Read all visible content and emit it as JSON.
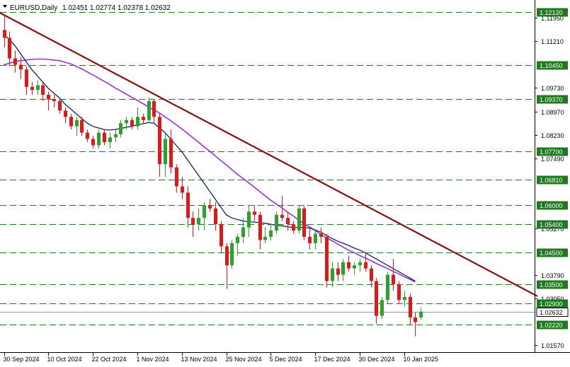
{
  "window": {
    "symbol_timeframe": "EURUSD,Daily",
    "ohlc": "1.02451 1.02774 1.02378 1.02632"
  },
  "colors": {
    "background": "#ffffff",
    "bull": "#2ea02c",
    "bear": "#e01818",
    "ma_fast": "#141e6e",
    "ma_slow": "#9b30d9",
    "trendline": "#8b0e0e",
    "level_line": "#1e7a1e",
    "level_label_bg": "#1e7a1e",
    "current_line": "#8a9a8a"
  },
  "chart_data": {
    "type": "candlestick",
    "title": "EURUSD,Daily",
    "ylim": [
      1.0135,
      1.125
    ],
    "x_labels": [
      "30 Sep 2024",
      "10 Oct 2024",
      "22 Oct 2024",
      "1 Nov 2024",
      "13 Nov 2024",
      "25 Nov 2024",
      "5 Dec 2024",
      "17 Dec 2024",
      "30 Dec 2024",
      "10 Jan 2025"
    ],
    "x_label_bar_index": [
      0,
      8,
      16,
      24,
      32,
      40,
      48,
      56,
      64,
      72
    ],
    "y_tick_labels": [
      "1.11950",
      "1.11210",
      "1.09730",
      "1.08970",
      "1.08230",
      "1.07490",
      "1.05270",
      "1.03790",
      "1.03050",
      "1.01570"
    ],
    "horizontal_levels": [
      "1.12120",
      "1.10450",
      "1.09370",
      "1.07700",
      "1.06810",
      "1.06000",
      "1.05400",
      "1.04500",
      "1.03500",
      "1.02900",
      "1.02220"
    ],
    "current_price": "1.02632",
    "candles": [
      {
        "o": 1.1155,
        "h": 1.12,
        "l": 1.11,
        "c": 1.113
      },
      {
        "o": 1.113,
        "h": 1.115,
        "l": 1.104,
        "c": 1.1065
      },
      {
        "o": 1.1065,
        "h": 1.109,
        "l": 1.102,
        "c": 1.1045
      },
      {
        "o": 1.1045,
        "h": 1.107,
        "l": 1.1,
        "c": 1.103
      },
      {
        "o": 1.103,
        "h": 1.104,
        "l": 1.095,
        "c": 1.0975
      },
      {
        "o": 1.0975,
        "h": 1.099,
        "l": 1.095,
        "c": 1.0965
      },
      {
        "o": 1.0965,
        "h": 1.0995,
        "l": 1.095,
        "c": 1.098
      },
      {
        "o": 1.098,
        "h": 1.099,
        "l": 1.093,
        "c": 1.095
      },
      {
        "o": 1.095,
        "h": 1.096,
        "l": 1.09,
        "c": 1.0935
      },
      {
        "o": 1.0935,
        "h": 1.095,
        "l": 1.091,
        "c": 1.093
      },
      {
        "o": 1.093,
        "h": 1.0935,
        "l": 1.089,
        "c": 1.09
      },
      {
        "o": 1.09,
        "h": 1.091,
        "l": 1.086,
        "c": 1.088
      },
      {
        "o": 1.088,
        "h": 1.089,
        "l": 1.084,
        "c": 1.085
      },
      {
        "o": 1.085,
        "h": 1.088,
        "l": 1.082,
        "c": 1.087
      },
      {
        "o": 1.087,
        "h": 1.088,
        "l": 1.082,
        "c": 1.083
      },
      {
        "o": 1.083,
        "h": 1.084,
        "l": 1.08,
        "c": 1.081
      },
      {
        "o": 1.081,
        "h": 1.082,
        "l": 1.078,
        "c": 1.079
      },
      {
        "o": 1.079,
        "h": 1.084,
        "l": 1.078,
        "c": 1.083
      },
      {
        "o": 1.083,
        "h": 1.084,
        "l": 1.079,
        "c": 1.08
      },
      {
        "o": 1.08,
        "h": 1.083,
        "l": 1.078,
        "c": 1.0815
      },
      {
        "o": 1.0815,
        "h": 1.084,
        "l": 1.08,
        "c": 1.0825
      },
      {
        "o": 1.0825,
        "h": 1.087,
        "l": 1.0815,
        "c": 1.086
      },
      {
        "o": 1.086,
        "h": 1.088,
        "l": 1.084,
        "c": 1.087
      },
      {
        "o": 1.087,
        "h": 1.088,
        "l": 1.084,
        "c": 1.085
      },
      {
        "o": 1.085,
        "h": 1.091,
        "l": 1.084,
        "c": 1.088
      },
      {
        "o": 1.088,
        "h": 1.089,
        "l": 1.086,
        "c": 1.087
      },
      {
        "o": 1.087,
        "h": 1.094,
        "l": 1.086,
        "c": 1.093
      },
      {
        "o": 1.093,
        "h": 1.0935,
        "l": 1.086,
        "c": 1.088
      },
      {
        "o": 1.088,
        "h": 1.089,
        "l": 1.069,
        "c": 1.073
      },
      {
        "o": 1.073,
        "h": 1.083,
        "l": 1.069,
        "c": 1.081
      },
      {
        "o": 1.081,
        "h": 1.084,
        "l": 1.07,
        "c": 1.072
      },
      {
        "o": 1.072,
        "h": 1.073,
        "l": 1.064,
        "c": 1.066
      },
      {
        "o": 1.066,
        "h": 1.069,
        "l": 1.062,
        "c": 1.064
      },
      {
        "o": 1.064,
        "h": 1.066,
        "l": 1.053,
        "c": 1.056
      },
      {
        "o": 1.056,
        "h": 1.058,
        "l": 1.05,
        "c": 1.054
      },
      {
        "o": 1.054,
        "h": 1.059,
        "l": 1.052,
        "c": 1.056
      },
      {
        "o": 1.056,
        "h": 1.061,
        "l": 1.052,
        "c": 1.06
      },
      {
        "o": 1.06,
        "h": 1.062,
        "l": 1.058,
        "c": 1.059
      },
      {
        "o": 1.059,
        "h": 1.061,
        "l": 1.052,
        "c": 1.054
      },
      {
        "o": 1.054,
        "h": 1.055,
        "l": 1.045,
        "c": 1.047
      },
      {
        "o": 1.047,
        "h": 1.048,
        "l": 1.0335,
        "c": 1.041
      },
      {
        "o": 1.041,
        "h": 1.049,
        "l": 1.04,
        "c": 1.048
      },
      {
        "o": 1.048,
        "h": 1.051,
        "l": 1.044,
        "c": 1.05
      },
      {
        "o": 1.05,
        "h": 1.056,
        "l": 1.048,
        "c": 1.053
      },
      {
        "o": 1.053,
        "h": 1.06,
        "l": 1.05,
        "c": 1.058
      },
      {
        "o": 1.058,
        "h": 1.06,
        "l": 1.055,
        "c": 1.057
      },
      {
        "o": 1.057,
        "h": 1.058,
        "l": 1.046,
        "c": 1.049
      },
      {
        "o": 1.049,
        "h": 1.053,
        "l": 1.048,
        "c": 1.05
      },
      {
        "o": 1.05,
        "h": 1.054,
        "l": 1.049,
        "c": 1.052
      },
      {
        "o": 1.052,
        "h": 1.058,
        "l": 1.051,
        "c": 1.057
      },
      {
        "o": 1.057,
        "h": 1.063,
        "l": 1.055,
        "c": 1.056
      },
      {
        "o": 1.056,
        "h": 1.058,
        "l": 1.052,
        "c": 1.054
      },
      {
        "o": 1.054,
        "h": 1.055,
        "l": 1.051,
        "c": 1.052
      },
      {
        "o": 1.052,
        "h": 1.06,
        "l": 1.051,
        "c": 1.059
      },
      {
        "o": 1.059,
        "h": 1.06,
        "l": 1.049,
        "c": 1.05
      },
      {
        "o": 1.05,
        "h": 1.053,
        "l": 1.046,
        "c": 1.048
      },
      {
        "o": 1.048,
        "h": 1.052,
        "l": 1.046,
        "c": 1.051
      },
      {
        "o": 1.051,
        "h": 1.053,
        "l": 1.048,
        "c": 1.05
      },
      {
        "o": 1.05,
        "h": 1.051,
        "l": 1.034,
        "c": 1.036
      },
      {
        "o": 1.036,
        "h": 1.042,
        "l": 1.034,
        "c": 1.04
      },
      {
        "o": 1.04,
        "h": 1.042,
        "l": 1.036,
        "c": 1.038
      },
      {
        "o": 1.038,
        "h": 1.043,
        "l": 1.036,
        "c": 1.042
      },
      {
        "o": 1.042,
        "h": 1.044,
        "l": 1.039,
        "c": 1.04
      },
      {
        "o": 1.04,
        "h": 1.042,
        "l": 1.038,
        "c": 1.041
      },
      {
        "o": 1.041,
        "h": 1.043,
        "l": 1.039,
        "c": 1.042
      },
      {
        "o": 1.042,
        "h": 1.045,
        "l": 1.039,
        "c": 1.04
      },
      {
        "o": 1.04,
        "h": 1.041,
        "l": 1.034,
        "c": 1.036
      },
      {
        "o": 1.036,
        "h": 1.037,
        "l": 1.0225,
        "c": 1.025
      },
      {
        "o": 1.025,
        "h": 1.031,
        "l": 1.024,
        "c": 1.03
      },
      {
        "o": 1.03,
        "h": 1.039,
        "l": 1.029,
        "c": 1.038
      },
      {
        "o": 1.038,
        "h": 1.043,
        "l": 1.033,
        "c": 1.035
      },
      {
        "o": 1.035,
        "h": 1.036,
        "l": 1.029,
        "c": 1.03
      },
      {
        "o": 1.03,
        "h": 1.033,
        "l": 1.028,
        "c": 1.031
      },
      {
        "o": 1.031,
        "h": 1.032,
        "l": 1.022,
        "c": 1.0245
      },
      {
        "o": 1.0245,
        "h": 1.026,
        "l": 1.0185,
        "c": 1.023
      },
      {
        "o": 1.02451,
        "h": 1.02774,
        "l": 1.02378,
        "c": 1.02632
      }
    ],
    "ma_fast": [
      1.114,
      1.1125,
      1.1105,
      1.108,
      1.1055,
      1.103,
      1.101,
      1.099,
      1.097,
      1.0955,
      1.094,
      1.092,
      1.0905,
      1.089,
      1.0875,
      1.086,
      1.085,
      1.0845,
      1.084,
      1.0838,
      1.084,
      1.0843,
      1.0847,
      1.085,
      1.0855,
      1.0858,
      1.0862,
      1.086,
      1.0845,
      1.083,
      1.081,
      1.079,
      1.077,
      1.0745,
      1.072,
      1.0695,
      1.067,
      1.0645,
      1.062,
      1.0595,
      1.057,
      1.056,
      1.0555,
      1.055,
      1.0548,
      1.0547,
      1.0545,
      1.0543,
      1.054,
      1.0537,
      1.0535,
      1.0532,
      1.053,
      1.053,
      1.053,
      1.0528,
      1.0522,
      1.0515,
      1.0505,
      1.0495,
      1.0487,
      1.048,
      1.0473,
      1.0465,
      1.0458,
      1.045,
      1.044,
      1.043,
      1.042,
      1.041,
      1.04,
      1.039,
      1.038,
      1.037,
      1.036
    ],
    "ma_slow": [
      1.1045,
      1.105,
      1.1055,
      1.1058,
      1.106,
      1.1062,
      1.1063,
      1.1063,
      1.1062,
      1.106,
      1.1058,
      1.1053,
      1.1048,
      1.104,
      1.1032,
      1.1022,
      1.1013,
      1.1003,
      1.0993,
      1.0983,
      1.0972,
      1.0962,
      1.0952,
      1.0942,
      1.0932,
      1.0922,
      1.0912,
      1.0902,
      1.0892,
      1.088,
      1.0868,
      1.0855,
      1.0842,
      1.0828,
      1.0814,
      1.08,
      1.0785,
      1.0772,
      1.0757,
      1.0742,
      1.0728,
      1.0713,
      1.0698,
      1.0685,
      1.0672,
      1.0658,
      1.0644,
      1.063,
      1.0616,
      1.0604,
      1.0592,
      1.0579,
      1.0567,
      1.0554,
      1.0542,
      1.0531,
      1.052,
      1.0508,
      1.0498,
      1.0488,
      1.0478,
      1.0468,
      1.0458,
      1.045,
      1.0441,
      1.0433,
      1.0425,
      1.0416,
      1.0408,
      1.04,
      1.0391,
      1.0383,
      1.0374,
      1.0366,
      1.0357
    ],
    "trendline": {
      "from": {
        "bar": -1,
        "price": 1.1212
      },
      "to": {
        "bar": 96,
        "price": 1.0312
      }
    }
  }
}
